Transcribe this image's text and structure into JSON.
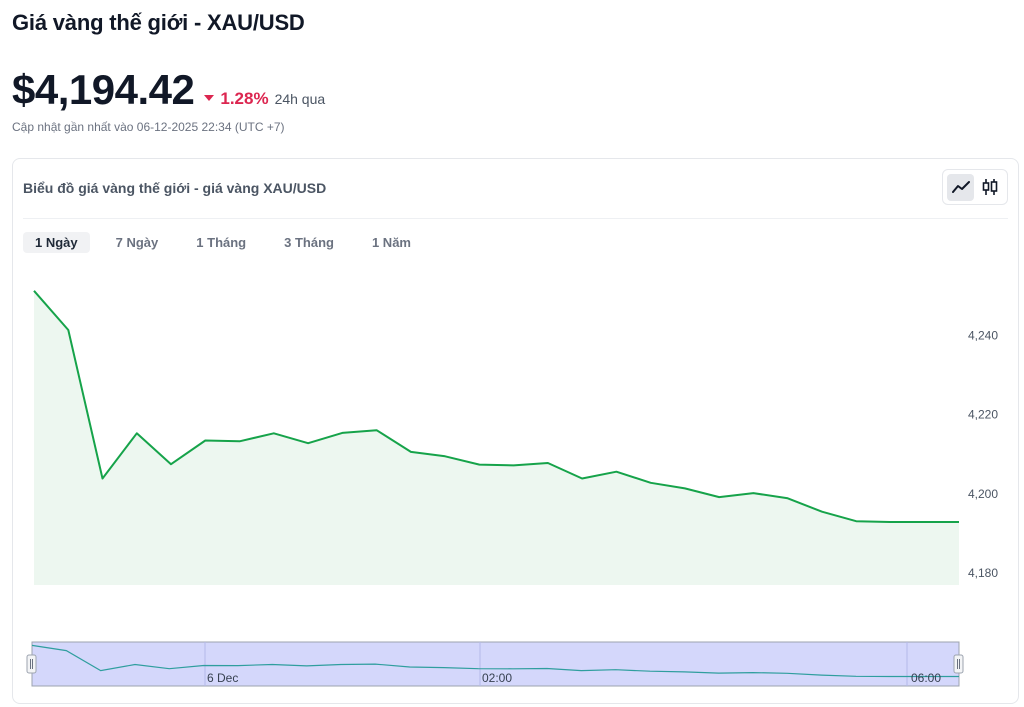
{
  "page": {
    "title": "Giá vàng thế giới - XAU/USD",
    "price": "$4,194.42",
    "change": "1.28%",
    "change_period": "24h qua",
    "updated": "Cập nhật gần nhất vào 06-12-2025 22:34 (UTC +7)"
  },
  "card": {
    "title": "Biểu đồ giá vàng thế giới - giá vàng XAU/USD"
  },
  "tabs": [
    {
      "label": "1 Ngày",
      "active": true
    },
    {
      "label": "7 Ngày",
      "active": false
    },
    {
      "label": "1 Tháng",
      "active": false
    },
    {
      "label": "3 Tháng",
      "active": false
    },
    {
      "label": "1 Năm",
      "active": false
    }
  ],
  "chart_type_toggle": {
    "active": "line",
    "options": [
      "line-chart-icon",
      "candlestick-icon"
    ]
  },
  "colors": {
    "line": "#16a34a",
    "area": "#edf7f0",
    "down": "#dc2650",
    "navigator_bg": "#d4d7fb",
    "navigator_line": "#2f9e9e"
  },
  "chart_data": {
    "type": "area",
    "y_ticks": [
      "4,180",
      "4,200",
      "4,220",
      "4,240"
    ],
    "ylim": [
      4177,
      4252
    ],
    "x_labels": [
      "6 Dec",
      "02:00",
      "06:00"
    ],
    "values": [
      4251.3,
      4241.4,
      4203.9,
      4215.3,
      4207.5,
      4213.5,
      4213.3,
      4215.3,
      4212.8,
      4215.4,
      4216.1,
      4210.6,
      4209.5,
      4207.4,
      4207.2,
      4207.8,
      4203.9,
      4205.6,
      4202.8,
      4201.4,
      4199.2,
      4200.2,
      4198.9,
      4195.5,
      4193.1,
      4192.9,
      4192.9,
      4192.9
    ]
  }
}
